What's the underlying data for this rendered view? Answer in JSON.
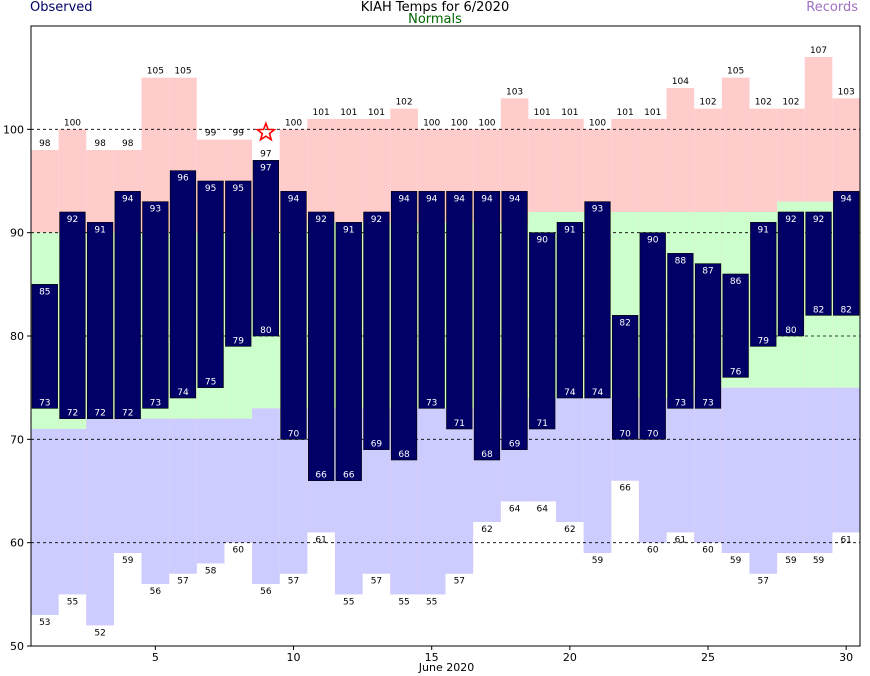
{
  "header": {
    "title": "KIAH Temps for 6/2020",
    "observed_label": "Observed",
    "normals_label": "Normals",
    "records_label": "Records"
  },
  "colors": {
    "observed": "#000066",
    "normals_label": "#006600",
    "records_label": "#a070c0",
    "record_high_band": "#ffcccc",
    "normal_band": "#ccffcc",
    "record_low_band": "#ccccff",
    "marker": "#ff0000",
    "observed_text": "#ffffff"
  },
  "chart_data": {
    "type": "bar",
    "title": "KIAH Temps for 6/2020",
    "xlabel": "June 2020",
    "ylabel": "",
    "xlim": [
      1,
      30
    ],
    "ylim": [
      50,
      110
    ],
    "y_ticks": [
      50,
      60,
      70,
      80,
      90,
      100
    ],
    "x_ticks": [
      5,
      10,
      15,
      20,
      25,
      30
    ],
    "grid": "horizontal dashed",
    "days": [
      1,
      2,
      3,
      4,
      5,
      6,
      7,
      8,
      9,
      10,
      11,
      12,
      13,
      14,
      15,
      16,
      17,
      18,
      19,
      20,
      21,
      22,
      23,
      24,
      25,
      26,
      27,
      28,
      29,
      30
    ],
    "series": [
      {
        "name": "Observed",
        "role": "observed_high",
        "values": [
          85,
          92,
          91,
          94,
          93,
          96,
          95,
          95,
          97,
          94,
          92,
          91,
          92,
          94,
          94,
          94,
          94,
          94,
          90,
          91,
          93,
          82,
          90,
          88,
          87,
          86,
          91,
          92,
          92,
          94
        ]
      },
      {
        "name": "Observed",
        "role": "observed_low",
        "values": [
          73,
          72,
          72,
          72,
          73,
          74,
          75,
          79,
          80,
          70,
          66,
          66,
          69,
          68,
          73,
          71,
          68,
          69,
          71,
          74,
          74,
          70,
          70,
          73,
          73,
          76,
          79,
          80,
          82,
          82
        ]
      },
      {
        "name": "Records",
        "role": "record_high",
        "values": [
          98,
          100,
          98,
          98,
          105,
          105,
          99,
          99,
          97,
          100,
          101,
          101,
          101,
          102,
          100,
          100,
          100,
          103,
          101,
          101,
          100,
          101,
          101,
          104,
          102,
          105,
          102,
          102,
          107,
          103
        ]
      },
      {
        "name": "Records",
        "role": "record_low",
        "values": [
          53,
          55,
          52,
          59,
          56,
          57,
          58,
          60,
          56,
          57,
          61,
          55,
          57,
          55,
          55,
          57,
          62,
          64,
          64,
          62,
          59,
          66,
          60,
          61,
          60,
          59,
          57,
          59,
          59,
          61
        ]
      },
      {
        "name": "Normals",
        "role": "normal_high",
        "values": [
          90,
          90,
          90,
          90,
          90,
          90,
          90,
          90,
          90,
          90,
          91,
          91,
          91,
          91,
          91,
          91,
          91,
          91,
          92,
          92,
          92,
          92,
          92,
          92,
          92,
          92,
          92,
          93,
          93,
          93
        ]
      },
      {
        "name": "Normals",
        "role": "normal_low",
        "values": [
          71,
          71,
          72,
          72,
          72,
          72,
          72,
          72,
          73,
          73,
          73,
          73,
          73,
          73,
          73,
          73,
          73,
          74,
          74,
          74,
          74,
          74,
          74,
          74,
          75,
          75,
          75,
          75,
          75,
          75
        ]
      }
    ],
    "annotations": [
      {
        "type": "star",
        "day": 9,
        "value": 99.7,
        "meaning": "record tied"
      }
    ]
  }
}
